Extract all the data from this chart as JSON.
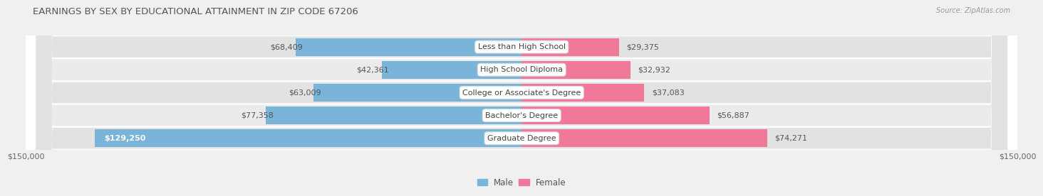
{
  "title": "EARNINGS BY SEX BY EDUCATIONAL ATTAINMENT IN ZIP CODE 67206",
  "source": "Source: ZipAtlas.com",
  "categories": [
    "Less than High School",
    "High School Diploma",
    "College or Associate's Degree",
    "Bachelor's Degree",
    "Graduate Degree"
  ],
  "male_values": [
    68409,
    42361,
    63009,
    77358,
    129250
  ],
  "female_values": [
    29375,
    32932,
    37083,
    56887,
    74271
  ],
  "male_color": "#7ab4d8",
  "female_color": "#f07898",
  "male_label": "Male",
  "female_label": "Female",
  "max_val": 150000,
  "row_bg_color": "#e2e2e2",
  "row_bg_color2": "#ebebeb",
  "fig_bg_color": "#f0f0f0",
  "tick_label": "$150,000",
  "title_fontsize": 9.5,
  "label_fontsize": 8.5,
  "value_fontsize": 8,
  "category_fontsize": 8,
  "source_fontsize": 7
}
